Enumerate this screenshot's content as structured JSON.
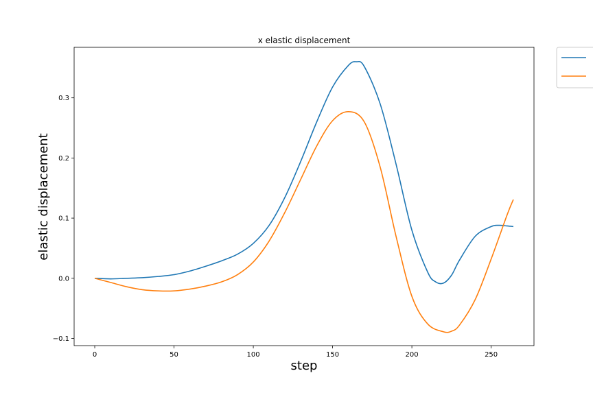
{
  "chart_data": {
    "type": "line",
    "title": "x elastic displacement",
    "xlabel": "step",
    "ylabel": "elastic displacement",
    "xlim": [
      -13,
      277
    ],
    "ylim": [
      -0.112,
      0.384
    ],
    "xticks": [
      0,
      50,
      100,
      150,
      200,
      250
    ],
    "yticks": [
      -0.1,
      0.0,
      0.1,
      0.2,
      0.3
    ],
    "ytick_labels": [
      "−0.1",
      "0.0",
      "0.1",
      "0.2",
      "0.3"
    ],
    "grid": false,
    "legend": {
      "placement": "outside-top-right",
      "entries": [
        "",
        ""
      ]
    },
    "series": [
      {
        "color": "#1f77b4",
        "x": [
          0,
          10,
          20,
          30,
          40,
          50,
          60,
          70,
          80,
          90,
          100,
          110,
          120,
          130,
          140,
          150,
          160,
          165,
          170,
          180,
          190,
          200,
          210,
          215,
          220,
          225,
          230,
          240,
          250,
          255,
          260,
          264
        ],
        "values": [
          0.0,
          -0.001,
          0.0,
          0.001,
          0.003,
          0.006,
          0.012,
          0.02,
          0.029,
          0.04,
          0.058,
          0.088,
          0.135,
          0.195,
          0.26,
          0.318,
          0.354,
          0.36,
          0.352,
          0.29,
          0.19,
          0.08,
          0.01,
          -0.006,
          -0.008,
          0.005,
          0.03,
          0.07,
          0.086,
          0.088,
          0.087,
          0.086
        ]
      },
      {
        "color": "#ff7f0e",
        "x": [
          0,
          10,
          20,
          30,
          40,
          50,
          60,
          70,
          80,
          90,
          100,
          110,
          120,
          130,
          140,
          150,
          160,
          170,
          180,
          190,
          200,
          210,
          220,
          225,
          230,
          240,
          250,
          260,
          264
        ],
        "values": [
          0.0,
          -0.007,
          -0.014,
          -0.019,
          -0.021,
          -0.021,
          -0.018,
          -0.013,
          -0.006,
          0.006,
          0.027,
          0.062,
          0.11,
          0.165,
          0.22,
          0.262,
          0.277,
          0.26,
          0.185,
          0.07,
          -0.03,
          -0.076,
          -0.089,
          -0.088,
          -0.078,
          -0.035,
          0.032,
          0.105,
          0.131
        ]
      }
    ]
  }
}
